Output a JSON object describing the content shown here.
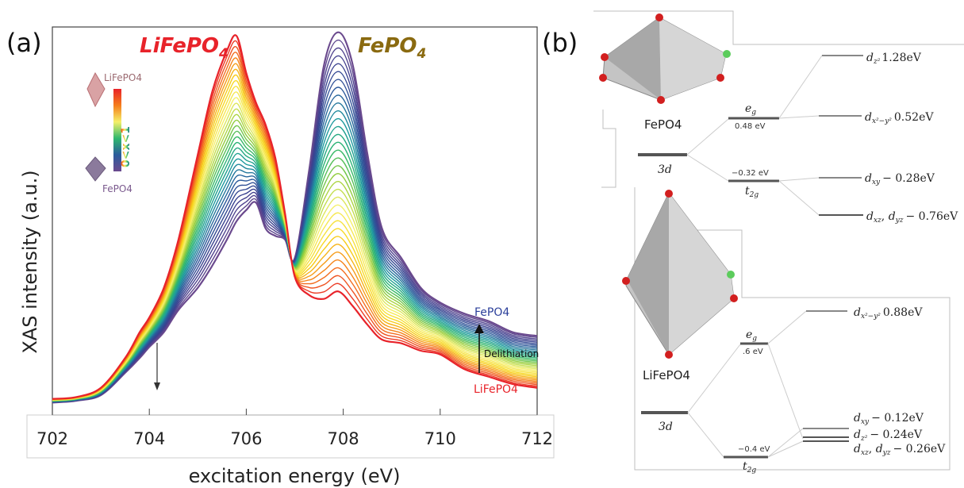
{
  "chart_data": [
    {
      "type": "line",
      "panel_label": "(a)",
      "xlabel": "excitation energy (eV)",
      "ylabel": "XAS intensity (a.u.)",
      "xlim": [
        702,
        712
      ],
      "xticks": [
        "702",
        "704",
        "706",
        "708",
        "710",
        "712"
      ],
      "grid": false,
      "title_left": "LiFePO",
      "title_left_sub": "4",
      "title_right": "FePO",
      "title_right_sub": "4",
      "curve_count": 34,
      "colormap": [
        "#e8232a",
        "#f57d1c",
        "#f7d418",
        "#f5f06a",
        "#9ccf3a",
        "#2fb86d",
        "#1d9a9e",
        "#2b5c9c",
        "#3b3f8f",
        "#6b4a8e"
      ],
      "series": [
        {
          "name": "LiFePO4",
          "color": "#e8232a",
          "x": [
            702,
            702.5,
            703,
            703.5,
            703.8,
            704,
            704.3,
            704.6,
            705,
            705.3,
            705.6,
            705.8,
            706,
            706.2,
            706.4,
            706.6,
            706.8,
            707,
            707.3,
            707.6,
            707.9,
            708.2,
            708.5,
            708.8,
            709.2,
            709.6,
            710,
            710.5,
            711,
            711.5,
            712
          ],
          "y": [
            0.02,
            0.025,
            0.05,
            0.13,
            0.2,
            0.24,
            0.32,
            0.45,
            0.68,
            0.85,
            0.96,
            1.0,
            0.9,
            0.82,
            0.76,
            0.67,
            0.52,
            0.35,
            0.3,
            0.29,
            0.31,
            0.27,
            0.22,
            0.18,
            0.17,
            0.15,
            0.14,
            0.1,
            0.08,
            0.06,
            0.05
          ]
        },
        {
          "name": "FePO4",
          "color": "#6b4a8e",
          "x": [
            702,
            702.5,
            703,
            703.5,
            703.8,
            704,
            704.3,
            704.6,
            705,
            705.3,
            705.6,
            705.8,
            706,
            706.2,
            706.4,
            706.6,
            706.8,
            707,
            707.3,
            707.6,
            707.9,
            708.2,
            708.5,
            708.8,
            709.2,
            709.6,
            710,
            710.5,
            711,
            711.5,
            712
          ],
          "y": [
            0.01,
            0.015,
            0.03,
            0.09,
            0.13,
            0.16,
            0.2,
            0.26,
            0.32,
            0.38,
            0.45,
            0.5,
            0.53,
            0.55,
            0.48,
            0.46,
            0.45,
            0.4,
            0.64,
            0.92,
            1.01,
            0.92,
            0.68,
            0.48,
            0.4,
            0.32,
            0.28,
            0.25,
            0.23,
            0.2,
            0.19
          ]
        }
      ],
      "inset_legend": {
        "top_label": "LiFePO4",
        "bottom_label": "FePO4",
        "scale_text": "0<x<1"
      },
      "annotations": {
        "right_top": "FePO4",
        "arrow_label": "Delithiation",
        "right_bottom": "LiFePO4"
      }
    },
    {
      "type": "diagram",
      "panel_label": "(b)",
      "upper": {
        "compound": "FePO4",
        "parent": "3d",
        "eg": "e",
        "eg_sub": "g",
        "eg_energy": "0.48 eV",
        "t2g": "t",
        "t2g_sub": "2g",
        "t2g_energy": "−0.32 eV",
        "levels": [
          {
            "label": "d",
            "sub": "z²",
            "value": "1.28eV"
          },
          {
            "label": "d",
            "sub": "x²−y²",
            "value": "0.52eV"
          },
          {
            "label": "d",
            "sub": "xy",
            "value": "− 0.28eV"
          },
          {
            "label": "d",
            "sub": "xz",
            "label2": "d",
            "sub2": "yz",
            "value": "− 0.76eV"
          }
        ]
      },
      "lower": {
        "compound": "LiFePO4",
        "parent": "3d",
        "eg": "e",
        "eg_sub": "g",
        "eg_energy": ".6 eV",
        "t2g": "t",
        "t2g_sub": "2g",
        "t2g_energy": "−0.4 eV",
        "levels": [
          {
            "label": "d",
            "sub": "x²−y²",
            "value": "0.88eV"
          },
          {
            "label": "d",
            "sub": "xy",
            "value": "− 0.12eV"
          },
          {
            "label": "d",
            "sub": "z²",
            "value": "− 0.24eV"
          },
          {
            "label": "d",
            "sub": "xz",
            "label2": "d",
            "sub2": "yz",
            "value": "− 0.26eV"
          }
        ]
      }
    }
  ]
}
